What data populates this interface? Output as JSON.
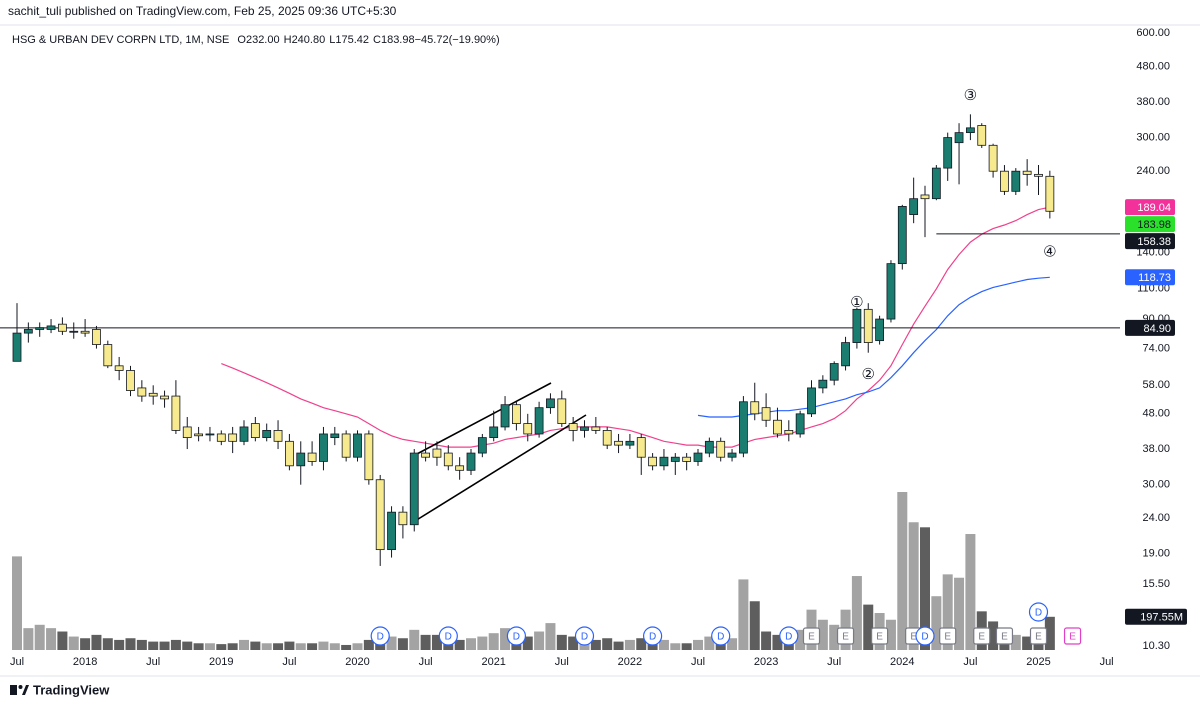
{
  "header": {
    "published": "sachit_tuli published on TradingView.com, Feb 25, 2025 09:36 UTC+5:30",
    "brand": "TradingView"
  },
  "chart_data": {
    "type": "candlestick",
    "title": "HSG & URBAN DEV CORPN LTD, 1M, NSE",
    "legend_values": [
      {
        "key": "O",
        "value": 232,
        "label": "232.00"
      },
      {
        "key": "H",
        "value": 240.8,
        "label": "240.80"
      },
      {
        "key": "L",
        "value": 175.42,
        "label": "175.42"
      },
      {
        "key": "C",
        "value": 183.98,
        "label": "183.98"
      },
      {
        "key": "",
        "value": -45.72,
        "label": "−45.72"
      },
      {
        "key": "",
        "value": -19.9,
        "label": "(−19.90%)"
      }
    ],
    "log_scale": true,
    "ylim": [
      10.02,
      633
    ],
    "yticks": [
      {
        "value": 600,
        "label": "600.00"
      },
      {
        "value": 480,
        "label": "480.00"
      },
      {
        "value": 380,
        "label": "380.00"
      },
      {
        "value": 300,
        "label": "300.00"
      },
      {
        "value": 240,
        "label": "240.00"
      },
      {
        "value": 140,
        "label": "140.00"
      },
      {
        "value": 110,
        "label": "110.00"
      },
      {
        "value": 90,
        "label": "90.00"
      },
      {
        "value": 74,
        "label": "74.00"
      },
      {
        "value": 58,
        "label": "58.00"
      },
      {
        "value": 48,
        "label": "48.00"
      },
      {
        "value": 38,
        "label": "38.00"
      },
      {
        "value": 30,
        "label": "30.00"
      },
      {
        "value": 24,
        "label": "24.00"
      },
      {
        "value": 19,
        "label": "19.00"
      },
      {
        "value": 15.5,
        "label": "15.50"
      },
      {
        "value": 10.3,
        "label": "10.30"
      }
    ],
    "categories": [
      "Jul",
      null,
      null,
      null,
      null,
      null,
      "2018",
      null,
      null,
      null,
      null,
      null,
      "Jul",
      null,
      null,
      null,
      null,
      null,
      "2019",
      null,
      null,
      null,
      null,
      null,
      "Jul",
      null,
      null,
      null,
      null,
      null,
      "2020",
      null,
      null,
      null,
      null,
      null,
      "Jul",
      null,
      null,
      null,
      null,
      null,
      "2021",
      null,
      null,
      null,
      null,
      null,
      "Jul",
      null,
      null,
      null,
      null,
      null,
      "2022",
      null,
      null,
      null,
      null,
      null,
      "Jul",
      null,
      null,
      null,
      null,
      null,
      "2023",
      null,
      null,
      null,
      null,
      null,
      "Jul",
      null,
      null,
      null,
      null,
      null,
      "2024",
      null,
      null,
      null,
      null,
      null,
      "Jul",
      null,
      null,
      null,
      null,
      null,
      "2025",
      null,
      null,
      null,
      null,
      null,
      "Jul"
    ],
    "open": [
      68,
      82,
      84,
      84,
      87,
      83,
      83,
      84,
      76,
      66,
      64,
      57,
      55,
      54,
      54,
      44,
      42,
      42,
      42,
      42,
      40,
      45,
      41,
      43,
      40,
      34,
      37,
      35,
      41,
      42,
      36,
      42,
      31,
      19.5,
      25,
      23,
      37,
      38,
      37,
      34,
      33,
      37,
      41,
      44,
      51,
      45,
      42,
      50,
      53,
      45,
      43,
      44,
      43,
      40,
      39,
      41,
      36,
      34,
      35,
      36,
      35,
      37,
      40,
      36,
      37,
      52,
      50,
      46,
      43,
      42,
      48,
      57,
      60,
      66,
      77,
      96,
      78,
      90,
      130,
      180,
      205,
      200,
      245,
      290,
      310,
      325,
      285,
      240,
      210,
      240,
      235,
      232,
      null,
      null,
      null,
      null,
      null
    ],
    "high": [
      100,
      88,
      88,
      90,
      91,
      88,
      90,
      86,
      78,
      70,
      66,
      60,
      58,
      56,
      60,
      47,
      44,
      44,
      43,
      44,
      46,
      47,
      45,
      46,
      42,
      40,
      40,
      44,
      44,
      43,
      43,
      43,
      32,
      26,
      26,
      38,
      40,
      40,
      39,
      36,
      38,
      42,
      49,
      54,
      52,
      48,
      52,
      55,
      56,
      47,
      46,
      47,
      44,
      42,
      42,
      42,
      37,
      38,
      37,
      37,
      38,
      41,
      41,
      38,
      54,
      59,
      55,
      50,
      46,
      49,
      60,
      62,
      68,
      80,
      97,
      100,
      92,
      133,
      192,
      230,
      218,
      250,
      310,
      330,
      350,
      330,
      288,
      250,
      245,
      260,
      250,
      240.8,
      null,
      null,
      null,
      null,
      null
    ],
    "low": [
      68,
      77,
      80,
      82,
      81,
      79,
      80,
      74,
      65,
      60,
      54,
      52,
      51,
      50,
      42,
      38,
      40,
      40,
      39,
      37,
      39,
      40,
      40,
      38,
      33,
      30,
      34,
      33,
      39,
      35,
      35,
      30,
      17.5,
      18.5,
      21,
      22,
      35,
      34,
      33,
      31,
      32,
      36,
      40,
      43,
      43,
      40,
      41,
      48,
      44,
      40,
      41,
      42,
      38,
      37,
      38,
      32,
      33,
      33,
      32,
      33,
      34,
      36,
      35,
      35,
      36,
      46,
      44,
      41,
      40,
      41,
      47,
      55,
      58,
      64,
      74,
      72,
      76,
      88,
      125,
      170,
      155,
      198,
      225,
      220,
      295,
      280,
      230,
      205,
      205,
      218,
      205,
      175.42,
      null,
      null,
      null,
      null,
      null
    ],
    "close": [
      82,
      84,
      85,
      86,
      83,
      83,
      82,
      76,
      66,
      64,
      56,
      54,
      54,
      53,
      43,
      41,
      41.5,
      42,
      40,
      40,
      44,
      41,
      43,
      40,
      34,
      37,
      35,
      42,
      42,
      36,
      42,
      31,
      19.5,
      25,
      23,
      37,
      36,
      36,
      34,
      33,
      37,
      41,
      44,
      51,
      45,
      42,
      50,
      53,
      45,
      43,
      44,
      43,
      39,
      39,
      40,
      36,
      34,
      36,
      36,
      35,
      37,
      40,
      36,
      37,
      52,
      48,
      46,
      42,
      42,
      48,
      57,
      60,
      67,
      77,
      96,
      77,
      90,
      130,
      190,
      200,
      200,
      245,
      300,
      310,
      320,
      285,
      240,
      210,
      240,
      235,
      232,
      183.98,
      null,
      null,
      null,
      null,
      null
    ],
    "up_color": "#1b7d6f",
    "down_color": "#f7ea8e",
    "volume": [
      557,
      130,
      150,
      130,
      110,
      80,
      70,
      90,
      70,
      60,
      70,
      60,
      50,
      50,
      60,
      50,
      40,
      40,
      35,
      40,
      60,
      50,
      40,
      40,
      50,
      40,
      40,
      50,
      40,
      30,
      40,
      60,
      100,
      80,
      70,
      120,
      90,
      90,
      60,
      60,
      70,
      80,
      100,
      130,
      100,
      80,
      110,
      160,
      90,
      80,
      70,
      60,
      70,
      50,
      60,
      70,
      50,
      60,
      40,
      40,
      60,
      80,
      60,
      70,
      420,
      290,
      110,
      90,
      60,
      120,
      240,
      180,
      150,
      240,
      440,
      270,
      220,
      180,
      940,
      760,
      730,
      320,
      450,
      430,
      690,
      230,
      170,
      110,
      90,
      80,
      110,
      197.55,
      null,
      null,
      null,
      null,
      null
    ],
    "volume_label": "197.55M",
    "volume_colors": {
      "up": "#a3a3a3",
      "down": "#5e5e5e",
      "label_bg": "#131722"
    },
    "overlays": [
      {
        "color": "#f0418c",
        "values": [
          null,
          null,
          null,
          null,
          null,
          null,
          null,
          null,
          null,
          null,
          null,
          null,
          null,
          null,
          null,
          null,
          null,
          null,
          67,
          65,
          63,
          61,
          59,
          57,
          55,
          53,
          51.5,
          50,
          49,
          48,
          47,
          45,
          43,
          41.5,
          40.5,
          40,
          39.5,
          39,
          38.5,
          38.5,
          38.5,
          39,
          39.5,
          40.5,
          41,
          41.5,
          42,
          43,
          43.5,
          44,
          44,
          44,
          44,
          43.5,
          43,
          42,
          41,
          40,
          39.5,
          39,
          39,
          38.5,
          38.5,
          38.5,
          39.5,
          40.5,
          41,
          41.5,
          42,
          43,
          44,
          45,
          46.5,
          49,
          53,
          56,
          60,
          66,
          76,
          87,
          98,
          110,
          125,
          138,
          150,
          158,
          164,
          168,
          173,
          180,
          186,
          189.04,
          null,
          null,
          null,
          null,
          null
        ],
        "label_bg": "#f2329a"
      },
      {
        "color": "#2962ff",
        "values": [
          null,
          null,
          null,
          null,
          null,
          null,
          null,
          null,
          null,
          null,
          null,
          null,
          null,
          null,
          null,
          null,
          null,
          null,
          null,
          null,
          null,
          null,
          null,
          null,
          null,
          null,
          null,
          null,
          null,
          null,
          null,
          null,
          null,
          null,
          null,
          null,
          null,
          null,
          null,
          null,
          null,
          null,
          null,
          null,
          null,
          null,
          null,
          null,
          null,
          null,
          null,
          null,
          null,
          null,
          null,
          null,
          null,
          null,
          null,
          null,
          47.5,
          47,
          47,
          47,
          47.5,
          48,
          48.5,
          49,
          49,
          49.5,
          50,
          51,
          52,
          53,
          54.5,
          55.5,
          57,
          61,
          66,
          72,
          78,
          84,
          92,
          99,
          104,
          108,
          111,
          113,
          115,
          117,
          118,
          118.73,
          null,
          null,
          null,
          null,
          null
        ],
        "label_bg": "#2962ff"
      }
    ],
    "close_label_bg": "#2be02b",
    "hlines": [
      {
        "value": 84.9,
        "label": "84.90",
        "start": 0
      },
      {
        "value": 158.38,
        "start": 81
      }
    ],
    "annotations": [
      {
        "text": "①",
        "at": 74,
        "price": 100
      },
      {
        "text": "②",
        "at": 75,
        "price": 62
      },
      {
        "text": "③",
        "at": 84,
        "price": 395
      },
      {
        "text": "④",
        "at": 91,
        "price": 140
      }
    ],
    "markers": [
      {
        "label": "D",
        "at": 32,
        "color": "#2962ff"
      },
      {
        "label": "D",
        "at": 38,
        "color": "#2962ff"
      },
      {
        "label": "D",
        "at": 44,
        "color": "#2962ff"
      },
      {
        "label": "D",
        "at": 50,
        "color": "#2962ff"
      },
      {
        "label": "D",
        "at": 56,
        "color": "#2962ff"
      },
      {
        "label": "D",
        "at": 62,
        "color": "#2962ff"
      },
      {
        "label": "D",
        "at": 68,
        "color": "#2962ff"
      },
      {
        "label": "E",
        "at": 70,
        "color": "#787b86"
      },
      {
        "label": "E",
        "at": 73,
        "color": "#787b86"
      },
      {
        "label": "E",
        "at": 76,
        "color": "#787b86"
      },
      {
        "label": "E",
        "at": 79,
        "color": "#787b86"
      },
      {
        "label": "D",
        "at": 80,
        "color": "#2962ff"
      },
      {
        "label": "E",
        "at": 82,
        "color": "#787b86"
      },
      {
        "label": "E",
        "at": 85,
        "color": "#787b86"
      },
      {
        "label": "E",
        "at": 87,
        "color": "#787b86"
      },
      {
        "label": "E",
        "at": 90,
        "color": "#787b86"
      },
      {
        "label": "D",
        "at": 90,
        "color": "#2962ff"
      },
      {
        "label": "E",
        "at": 93,
        "color": "#e040c8"
      }
    ]
  }
}
